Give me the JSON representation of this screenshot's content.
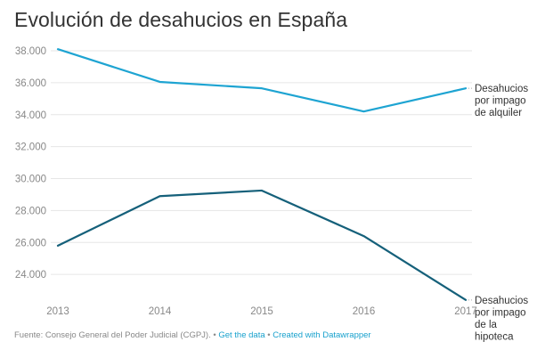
{
  "chart_data": {
    "type": "line",
    "title": "Evolución de desahucios en España",
    "xlabel": "",
    "ylabel": "",
    "x": [
      "2013",
      "2014",
      "2015",
      "2016",
      "2017"
    ],
    "ylim": [
      22000,
      38000
    ],
    "yticks": [
      {
        "value": 38000,
        "label": "38.000"
      },
      {
        "value": 36000,
        "label": "36.000"
      },
      {
        "value": 34000,
        "label": "34.000"
      },
      {
        "value": 32000,
        "label": "32.000"
      },
      {
        "value": 30000,
        "label": "30.000"
      },
      {
        "value": 28000,
        "label": "28.000"
      },
      {
        "value": 26000,
        "label": "26.000"
      },
      {
        "value": 24000,
        "label": "24.000"
      }
    ],
    "grid": true,
    "legend": "inline-right",
    "series": [
      {
        "name": "Desahucios por impago de alquiler",
        "label_lines": [
          "Desahucios",
          "por impago",
          "de alquiler"
        ],
        "color": "#1ea4d2",
        "values": [
          38100,
          36050,
          35650,
          34200,
          35650
        ]
      },
      {
        "name": "Desahucios por impago de la hipoteca",
        "label_lines": [
          "Desahucios",
          "por impago",
          "de la",
          "hipoteca"
        ],
        "color": "#15607a",
        "values": [
          25800,
          28900,
          29250,
          26400,
          22400
        ]
      }
    ]
  },
  "footer": {
    "source": "Fuente: Consejo General del Poder Judicial (CGPJ).",
    "separator": "•",
    "get_data": "Get the data",
    "created_with": "Created with Datawrapper"
  }
}
